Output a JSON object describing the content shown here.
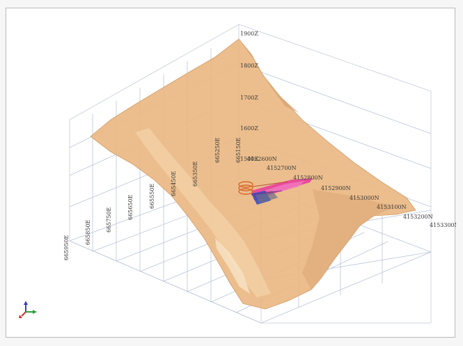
{
  "viewport": {
    "z_labels": [
      "1900Z",
      "1800Z",
      "1700Z",
      "1600Z",
      "1500Z"
    ],
    "north_labels": [
      "4152600N",
      "4152700N",
      "4152800N",
      "4152900N",
      "4153000N",
      "4153100N",
      "4153200N",
      "4153300N"
    ],
    "east_labels": [
      "665150E",
      "665250E",
      "665350E",
      "665450E",
      "665550E",
      "665650E",
      "665750E",
      "665850E",
      "665950E"
    ]
  },
  "colors": {
    "surface": "#eab983",
    "surface_edge": "#c79462",
    "grid": "#b9c4d8",
    "orebody_pink": "#e8389c",
    "orebody_blue": "#3a50c0",
    "orebody_orange": "#d9682a"
  },
  "axis_triad": {
    "icon": "xyz-axis-triad-icon"
  }
}
